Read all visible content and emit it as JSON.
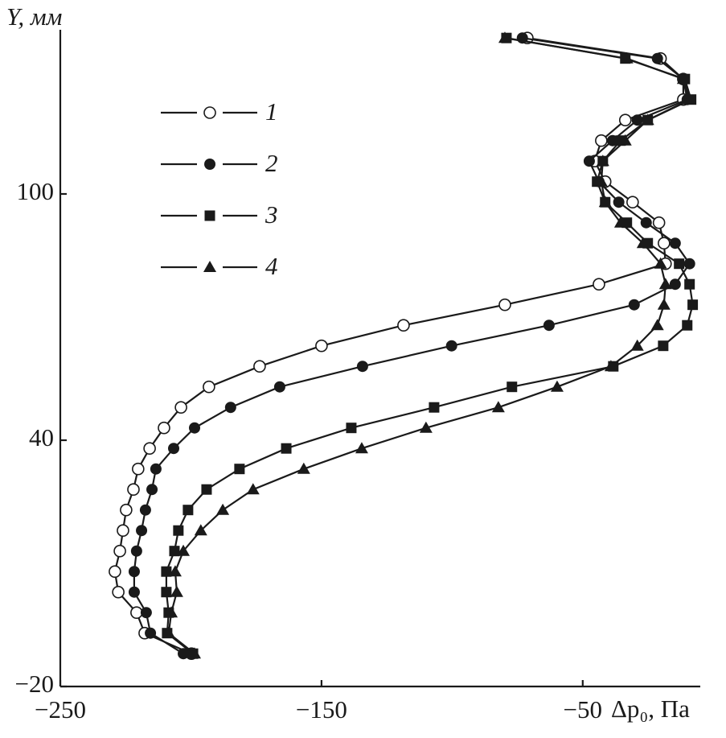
{
  "chart_data": {
    "type": "line",
    "y_label": "Y, мм",
    "x_label": "Δp₀, Па",
    "xlim": [
      -250,
      -5
    ],
    "ylim": [
      -20,
      140
    ],
    "xticks": [
      {
        "value": -250,
        "label": "−250"
      },
      {
        "value": -150,
        "label": "−150"
      },
      {
        "value": -50,
        "label": "−50"
      }
    ],
    "yticks": [
      {
        "value": -20,
        "label": "−20"
      },
      40,
      100
    ],
    "legend": "upper left",
    "series": [
      {
        "name": "1",
        "color": "#1a1a1a",
        "marker": "open-circle",
        "x": [
          -199.8,
          -217.7,
          -220.8,
          -227.8,
          -229.1,
          -227.2,
          -226.0,
          -224.8,
          -222.0,
          -220.2,
          -215.8,
          -210.3,
          -203.8,
          -193.1,
          -173.7,
          -150,
          -118.6,
          -79.8,
          -43.8,
          -18.3,
          -18.9,
          -20.8,
          -30.9,
          -41.4,
          -45.4,
          -42.9,
          -33.7,
          -11.5,
          -11.5,
          -20.2,
          -71.2
        ],
        "values": [
          -12,
          -7,
          -2,
          3,
          8,
          13,
          18,
          23,
          28,
          33,
          38,
          43,
          48,
          53,
          58,
          63,
          68,
          73,
          78,
          83,
          88,
          93,
          98,
          103,
          108,
          113,
          118,
          123,
          128,
          133,
          138
        ]
      },
      {
        "name": "2",
        "color": "#1a1a1a",
        "marker": "circle",
        "x": [
          -202.9,
          -215.5,
          -217.1,
          -221.7,
          -221.7,
          -220.8,
          -218.9,
          -217.4,
          -214.9,
          -213.4,
          -206.6,
          -198.6,
          -184.8,
          -166.0,
          -134.3,
          -100.2,
          -62.9,
          -30.3,
          -14.6,
          -9.1,
          -14.6,
          -25.7,
          -36.2,
          -43.8,
          -47.5,
          -38.6,
          -29.1,
          -10.0,
          -11.5,
          -21.4,
          -73.1
        ],
        "values": [
          -12,
          -7,
          -2,
          3,
          8,
          13,
          18,
          23,
          28,
          33,
          38,
          43,
          48,
          53,
          58,
          63,
          68,
          73,
          78,
          83,
          88,
          93,
          98,
          103,
          108,
          113,
          118,
          123,
          128,
          133,
          138
        ]
      },
      {
        "name": "3",
        "color": "#1a1a1a",
        "marker": "square",
        "x": [
          -199.2,
          -209.1,
          -208.5,
          -209.4,
          -209.4,
          -206.3,
          -204.8,
          -201.1,
          -194.0,
          -181.4,
          -163.5,
          -138.6,
          -106.9,
          -77.1,
          -38.3,
          -19.2,
          -10.0,
          -7.9,
          -9.1,
          -13.1,
          -25.1,
          -33.1,
          -41.4,
          -44.5,
          -42.3,
          -35.5,
          -25.1,
          -8.5,
          -10.9,
          -33.7,
          -79.2
        ],
        "values": [
          -12,
          -7,
          -2,
          3,
          8,
          13,
          18,
          23,
          28,
          33,
          38,
          43,
          48,
          53,
          58,
          63,
          68,
          73,
          78,
          83,
          88,
          93,
          98,
          103,
          108,
          113,
          118,
          123,
          128,
          133,
          138
        ]
      },
      {
        "name": "4",
        "color": "#1a1a1a",
        "marker": "triangle",
        "x": [
          -198.6,
          -208.5,
          -207.5,
          -205.4,
          -206.0,
          -202.9,
          -196.2,
          -187.8,
          -176.2,
          -156.8,
          -134.6,
          -110,
          -82.3,
          -59.8,
          -39.2,
          -29.1,
          -21.4,
          -18.9,
          -18.3,
          -20.2,
          -26.9,
          -35.5,
          -41.4,
          -42.9,
          -42.3,
          -33.7,
          -25.1,
          -9.1,
          -11.5,
          -33.1,
          -79.8
        ],
        "values": [
          -12,
          -7,
          -2,
          3,
          8,
          13,
          18,
          23,
          28,
          33,
          38,
          43,
          48,
          53,
          58,
          63,
          68,
          73,
          78,
          83,
          88,
          93,
          98,
          103,
          108,
          113,
          118,
          123,
          128,
          133,
          138
        ]
      }
    ]
  }
}
